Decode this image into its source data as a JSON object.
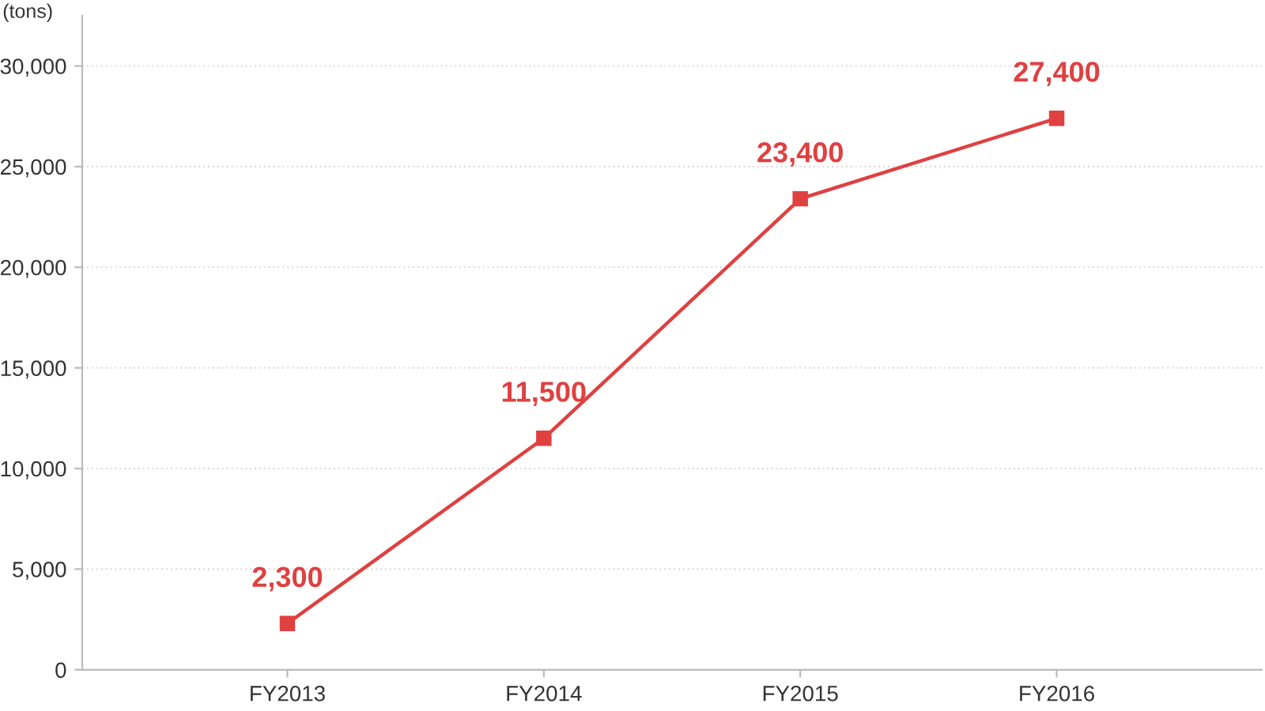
{
  "chart_data": {
    "type": "line",
    "ylabel": "(tons)",
    "categories": [
      "FY2013",
      "FY2014",
      "FY2015",
      "FY2016"
    ],
    "series": [
      {
        "color": "#e04040",
        "values": [
          2300,
          11500,
          23400,
          27400
        ],
        "value_labels": [
          "2,300",
          "11,500",
          "23,400",
          "27,400"
        ]
      }
    ],
    "ylim": [
      0,
      32500
    ],
    "yticks": [
      0,
      {
        "value": 5000,
        "label": "5,000"
      },
      {
        "value": 10000,
        "label": "10,000"
      },
      {
        "value": 15000,
        "label": "15,000"
      },
      {
        "value": 20000,
        "label": "20,000"
      },
      {
        "value": 25000,
        "label": "25,000"
      },
      {
        "value": 30000,
        "label": "30,000"
      }
    ],
    "grid": "y",
    "marker": "square",
    "line_style": "solid",
    "legend": false
  }
}
